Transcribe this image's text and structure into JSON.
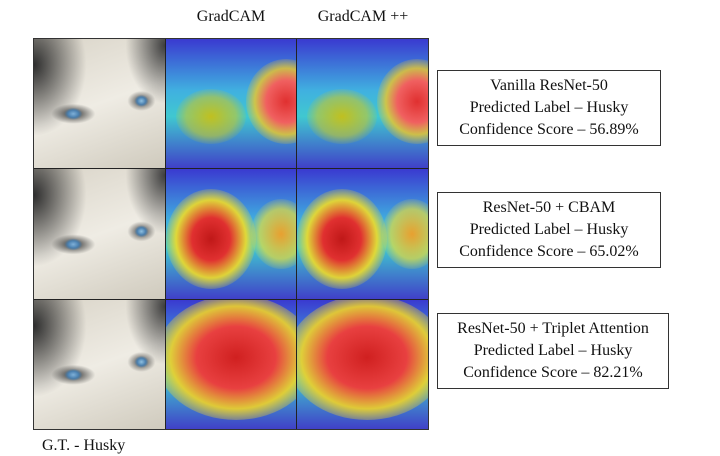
{
  "columns": [
    "GradCAM",
    "GradCAM ++"
  ],
  "rows": [
    {
      "model": "Vanilla ResNet-50",
      "label": "Predicted Label – Husky",
      "confidence": "Confidence Score – 56.89%"
    },
    {
      "model": "ResNet-50 + CBAM",
      "label": "Predicted Label – Husky",
      "confidence": "Confidence Score – 65.02%"
    },
    {
      "model": "ResNet-50 + Triplet Attention",
      "label": "Predicted Label – Husky",
      "confidence": "Confidence Score – 82.21%"
    }
  ],
  "ground_truth": "G.T. - Husky"
}
